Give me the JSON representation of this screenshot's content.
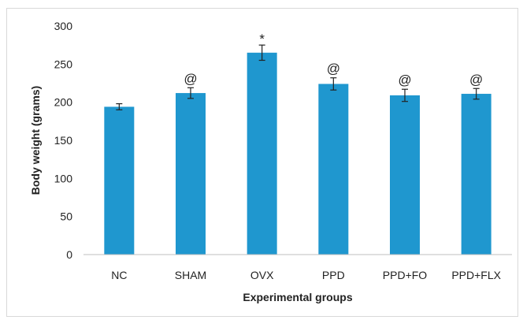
{
  "chart_data": {
    "type": "bar",
    "title": "",
    "xlabel": "Experimental groups",
    "ylabel": "Body weight (grams)",
    "categories": [
      "NC",
      "SHAM",
      "OVX",
      "PPD",
      "PPD+FO",
      "PPD+FLX"
    ],
    "values": [
      194,
      212,
      265,
      224,
      209,
      211
    ],
    "errors": [
      4,
      7,
      10,
      8,
      8,
      7
    ],
    "significance": [
      "",
      "@",
      "*",
      "@",
      "@",
      "@"
    ],
    "ylim": [
      0,
      300
    ],
    "yticks": [
      "0",
      "50",
      "100",
      "150",
      "200",
      "250",
      "300"
    ],
    "grid": false,
    "legend": "none",
    "bar_color": "#1f97cf"
  }
}
